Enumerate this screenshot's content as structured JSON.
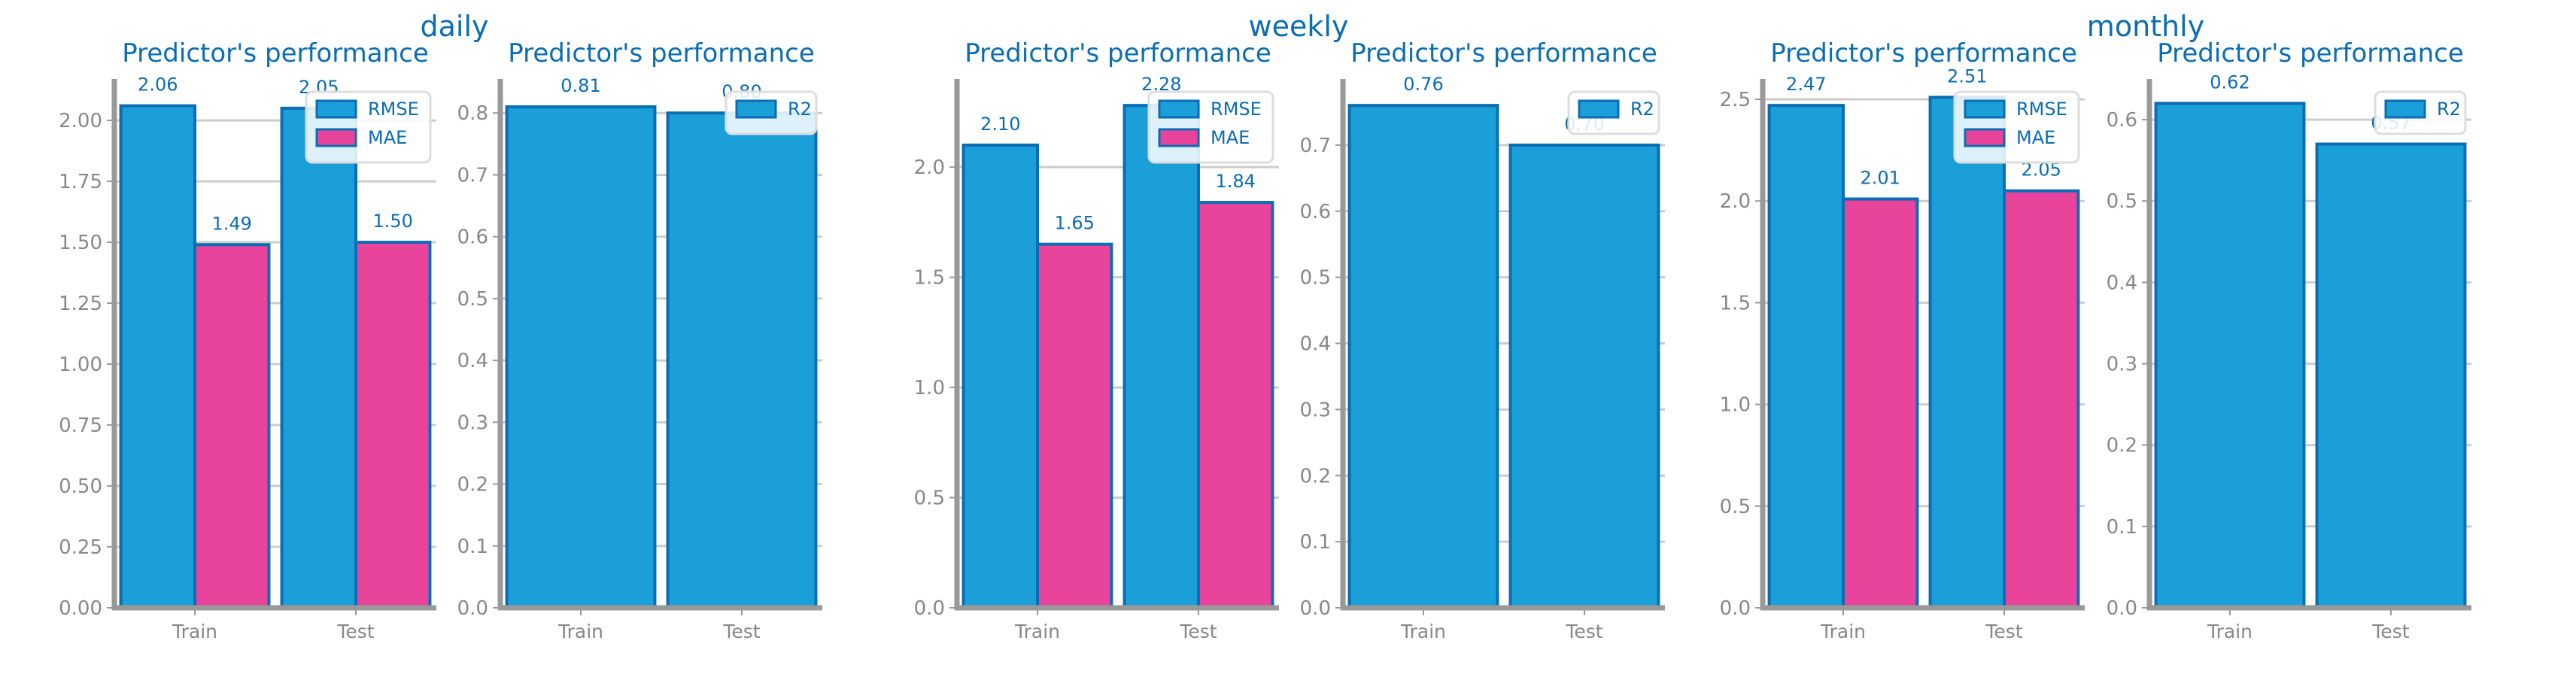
{
  "colors": {
    "title": "#0b6db3",
    "rmse": "#1a9fd9",
    "mae": "#e8449b",
    "bar_edge": "#0b6db3",
    "axis": "#999999",
    "grid": "#cccccc",
    "tick_label": "#888888",
    "value_label": "#0b6db3"
  },
  "groups": [
    {
      "suptitle": "daily",
      "charts": [
        {
          "type": "bar",
          "title": "Predictor's performance",
          "categories": [
            "Train",
            "Test"
          ],
          "series": [
            {
              "name": "RMSE",
              "values": [
                2.06,
                2.05
              ],
              "labels": [
                "2.06",
                "2.05"
              ],
              "color": "#1a9fd9"
            },
            {
              "name": "MAE",
              "values": [
                1.49,
                1.5
              ],
              "labels": [
                "1.49",
                "1.50"
              ],
              "color": "#e8449b"
            }
          ],
          "ylim": [
            0,
            2.17
          ],
          "yticks": [
            "0.00",
            "0.25",
            "0.50",
            "0.75",
            "1.00",
            "1.25",
            "1.50",
            "1.75",
            "2.00"
          ],
          "ytick_values": [
            0,
            0.25,
            0.5,
            0.75,
            1.0,
            1.25,
            1.5,
            1.75,
            2.0
          ],
          "grid": true,
          "legend": "top-right"
        },
        {
          "type": "bar",
          "title": "Predictor's performance",
          "categories": [
            "Train",
            "Test"
          ],
          "series": [
            {
              "name": "R2",
              "values": [
                0.81,
                0.8
              ],
              "labels": [
                "0.81",
                "0.80"
              ],
              "color": "#1a9fd9"
            }
          ],
          "ylim": [
            0,
            0.855
          ],
          "yticks": [
            "0.0",
            "0.1",
            "0.2",
            "0.3",
            "0.4",
            "0.5",
            "0.6",
            "0.7",
            "0.8"
          ],
          "ytick_values": [
            0,
            0.1,
            0.2,
            0.3,
            0.4,
            0.5,
            0.6,
            0.7,
            0.8
          ],
          "grid": true,
          "legend": "top-right"
        }
      ]
    },
    {
      "suptitle": "weekly",
      "charts": [
        {
          "type": "bar",
          "title": "Predictor's performance",
          "categories": [
            "Train",
            "Test"
          ],
          "series": [
            {
              "name": "RMSE",
              "values": [
                2.1,
                2.28
              ],
              "labels": [
                "2.10",
                "2.28"
              ],
              "color": "#1a9fd9"
            },
            {
              "name": "MAE",
              "values": [
                1.65,
                1.84
              ],
              "labels": [
                "1.65",
                "1.84"
              ],
              "color": "#e8449b"
            }
          ],
          "ylim": [
            0,
            2.4
          ],
          "yticks": [
            "0.0",
            "0.5",
            "1.0",
            "1.5",
            "2.0"
          ],
          "ytick_values": [
            0,
            0.5,
            1.0,
            1.5,
            2.0
          ],
          "grid": true,
          "legend": "top-right"
        },
        {
          "type": "bar",
          "title": "Predictor's performance",
          "categories": [
            "Train",
            "Test"
          ],
          "series": [
            {
              "name": "R2",
              "values": [
                0.76,
                0.7
              ],
              "labels": [
                "0.76",
                "0.70"
              ],
              "color": "#1a9fd9"
            }
          ],
          "ylim": [
            0,
            0.8
          ],
          "yticks": [
            "0.0",
            "0.1",
            "0.2",
            "0.3",
            "0.4",
            "0.5",
            "0.6",
            "0.7"
          ],
          "ytick_values": [
            0,
            0.1,
            0.2,
            0.3,
            0.4,
            0.5,
            0.6,
            0.7
          ],
          "grid": true,
          "legend": "top-right"
        }
      ]
    },
    {
      "suptitle": "monthly",
      "charts": [
        {
          "type": "bar",
          "title": "Predictor's performance",
          "categories": [
            "Train",
            "Test"
          ],
          "series": [
            {
              "name": "RMSE",
              "values": [
                2.47,
                2.51
              ],
              "labels": [
                "2.47",
                "2.51"
              ],
              "color": "#1a9fd9"
            },
            {
              "name": "MAE",
              "values": [
                2.01,
                2.05
              ],
              "labels": [
                "2.01",
                "2.05"
              ],
              "color": "#e8449b"
            }
          ],
          "ylim": [
            0,
            2.6
          ],
          "yticks": [
            "0.0",
            "0.5",
            "1.0",
            "1.5",
            "2.0",
            "2.5"
          ],
          "ytick_values": [
            0,
            0.5,
            1.0,
            1.5,
            2.0,
            2.5
          ],
          "grid": true,
          "legend": "top-right"
        },
        {
          "type": "bar",
          "title": "Predictor's performance",
          "categories": [
            "Train",
            "Test"
          ],
          "series": [
            {
              "name": "R2",
              "values": [
                0.62,
                0.57
              ],
              "labels": [
                "0.62",
                "0.57"
              ],
              "color": "#1a9fd9"
            }
          ],
          "ylim": [
            0,
            0.65
          ],
          "yticks": [
            "0.0",
            "0.1",
            "0.2",
            "0.3",
            "0.4",
            "0.5",
            "0.6"
          ],
          "ytick_values": [
            0,
            0.1,
            0.2,
            0.3,
            0.4,
            0.5,
            0.6
          ],
          "grid": true,
          "legend": "top-right"
        }
      ]
    }
  ]
}
